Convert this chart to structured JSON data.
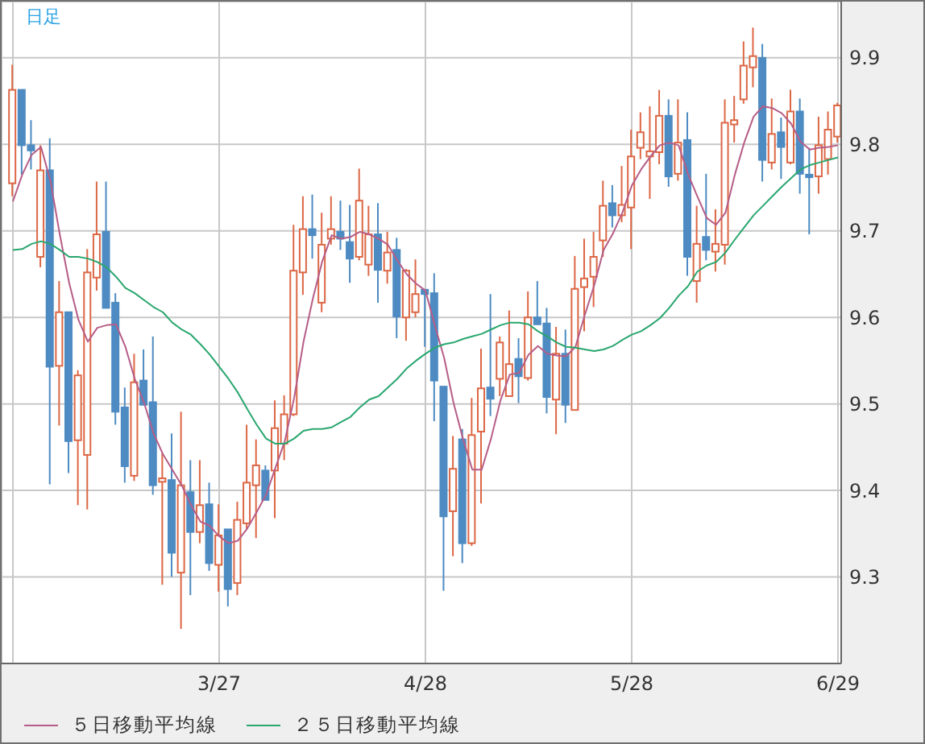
{
  "chart_data": {
    "type": "candlestick",
    "title": "日足",
    "categories": [
      null,
      null,
      null,
      null,
      null,
      null,
      null,
      null,
      null,
      null,
      null,
      null,
      null,
      null,
      null,
      null,
      null,
      null,
      null,
      null,
      null,
      null,
      "3/27",
      null,
      null,
      null,
      null,
      null,
      null,
      null,
      null,
      null,
      null,
      null,
      null,
      null,
      null,
      null,
      null,
      null,
      null,
      null,
      null,
      null,
      "4/28",
      null,
      null,
      null,
      null,
      null,
      null,
      null,
      null,
      null,
      null,
      null,
      null,
      null,
      null,
      null,
      null,
      null,
      null,
      null,
      null,
      null,
      "5/28",
      null,
      null,
      null,
      null,
      null,
      null,
      null,
      null,
      null,
      null,
      null,
      null,
      null,
      null,
      null,
      null,
      null,
      null,
      null,
      null,
      null,
      "6/29"
    ],
    "ohlc": [
      [
        9.755,
        9.892,
        9.74,
        9.863
      ],
      [
        9.863,
        9.863,
        9.765,
        9.799
      ],
      [
        9.799,
        9.828,
        9.771,
        9.793
      ],
      [
        9.67,
        9.799,
        9.658,
        9.77
      ],
      [
        9.77,
        9.807,
        9.407,
        9.543
      ],
      [
        9.544,
        9.642,
        9.475,
        9.606
      ],
      [
        9.606,
        9.606,
        9.42,
        9.457
      ],
      [
        9.458,
        9.539,
        9.383,
        9.533
      ],
      [
        9.441,
        9.679,
        9.378,
        9.652
      ],
      [
        9.646,
        9.757,
        9.631,
        9.696
      ],
      [
        9.699,
        9.757,
        9.611,
        9.611
      ],
      [
        9.617,
        9.628,
        9.476,
        9.491
      ],
      [
        9.496,
        9.519,
        9.409,
        9.428
      ],
      [
        9.417,
        9.558,
        9.411,
        9.525
      ],
      [
        9.527,
        9.563,
        9.499,
        9.499
      ],
      [
        9.502,
        9.578,
        9.395,
        9.406
      ],
      [
        9.41,
        9.443,
        9.291,
        9.414
      ],
      [
        9.412,
        9.466,
        9.3,
        9.328
      ],
      [
        9.305,
        9.491,
        9.24,
        9.406
      ],
      [
        9.398,
        9.435,
        9.279,
        9.352
      ],
      [
        9.352,
        9.435,
        9.339,
        9.383
      ],
      [
        9.384,
        9.409,
        9.307,
        9.316
      ],
      [
        9.314,
        9.384,
        9.283,
        9.348
      ],
      [
        9.355,
        9.355,
        9.266,
        9.286
      ],
      [
        9.293,
        9.387,
        9.279,
        9.366
      ],
      [
        9.362,
        9.476,
        9.355,
        9.409
      ],
      [
        9.406,
        9.459,
        9.345,
        9.429
      ],
      [
        9.423,
        9.429,
        9.389,
        9.389
      ],
      [
        9.423,
        9.504,
        9.368,
        9.472
      ],
      [
        9.454,
        9.51,
        9.435,
        9.488
      ],
      [
        9.488,
        9.707,
        9.486,
        9.654
      ],
      [
        9.652,
        9.74,
        9.626,
        9.702
      ],
      [
        9.702,
        9.742,
        9.668,
        9.695
      ],
      [
        9.617,
        9.721,
        9.606,
        9.684
      ],
      [
        9.691,
        9.74,
        9.684,
        9.702
      ],
      [
        9.699,
        9.735,
        9.678,
        9.691
      ],
      [
        9.687,
        9.73,
        9.64,
        9.668
      ],
      [
        9.67,
        9.772,
        9.666,
        9.735
      ],
      [
        9.661,
        9.729,
        9.648,
        9.696
      ],
      [
        9.696,
        9.732,
        9.617,
        9.655
      ],
      [
        9.654,
        9.699,
        9.639,
        9.675
      ],
      [
        9.678,
        9.692,
        9.576,
        9.601
      ],
      [
        9.6,
        9.656,
        9.573,
        9.654
      ],
      [
        9.606,
        9.667,
        9.6,
        9.627
      ],
      [
        9.632,
        9.632,
        9.566,
        9.627
      ],
      [
        9.628,
        9.651,
        9.48,
        9.527
      ],
      [
        9.52,
        9.52,
        9.284,
        9.37
      ],
      [
        9.376,
        9.463,
        9.324,
        9.425
      ],
      [
        9.459,
        9.471,
        9.316,
        9.339
      ],
      [
        9.339,
        9.507,
        9.336,
        9.464
      ],
      [
        9.468,
        9.564,
        9.385,
        9.518
      ],
      [
        9.519,
        9.627,
        9.486,
        9.506
      ],
      [
        9.529,
        9.578,
        9.509,
        9.571
      ],
      [
        9.509,
        9.608,
        9.509,
        9.546
      ],
      [
        9.552,
        9.576,
        9.501,
        9.532
      ],
      [
        9.53,
        9.63,
        9.527,
        9.6
      ],
      [
        9.6,
        9.642,
        9.592,
        9.592
      ],
      [
        9.593,
        9.611,
        9.489,
        9.508
      ],
      [
        9.505,
        9.589,
        9.465,
        9.558
      ],
      [
        9.558,
        9.586,
        9.478,
        9.499
      ],
      [
        9.493,
        9.671,
        9.493,
        9.633
      ],
      [
        9.635,
        9.691,
        9.584,
        9.645
      ],
      [
        9.647,
        9.699,
        9.612,
        9.67
      ],
      [
        9.689,
        9.758,
        9.67,
        9.729
      ],
      [
        9.732,
        9.753,
        9.704,
        9.718
      ],
      [
        9.718,
        9.775,
        9.71,
        9.73
      ],
      [
        9.727,
        9.817,
        9.679,
        9.786
      ],
      [
        9.796,
        9.837,
        9.783,
        9.814
      ],
      [
        9.786,
        9.844,
        9.737,
        9.792
      ],
      [
        9.791,
        9.863,
        9.777,
        9.833
      ],
      [
        9.833,
        9.852,
        9.751,
        9.763
      ],
      [
        9.766,
        9.852,
        9.758,
        9.802
      ],
      [
        9.805,
        9.837,
        9.648,
        9.67
      ],
      [
        9.642,
        9.729,
        9.617,
        9.685
      ],
      [
        9.693,
        9.766,
        9.666,
        9.678
      ],
      [
        9.676,
        9.725,
        9.653,
        9.685
      ],
      [
        9.684,
        9.852,
        9.661,
        9.825
      ],
      [
        9.823,
        9.856,
        9.802,
        9.828
      ],
      [
        9.852,
        9.919,
        9.847,
        9.891
      ],
      [
        9.889,
        9.935,
        9.866,
        9.902
      ],
      [
        9.9,
        9.916,
        9.757,
        9.782
      ],
      [
        9.779,
        9.853,
        9.771,
        9.812
      ],
      [
        9.814,
        9.831,
        9.76,
        9.797
      ],
      [
        9.779,
        9.863,
        9.777,
        9.838
      ],
      [
        9.838,
        9.853,
        9.743,
        9.766
      ],
      [
        9.765,
        9.796,
        9.696,
        9.762
      ],
      [
        9.763,
        9.832,
        9.743,
        9.799
      ],
      [
        9.783,
        9.838,
        9.765,
        9.817
      ],
      [
        9.809,
        9.848,
        9.802,
        9.845
      ]
    ],
    "colors": [
      "#dc6745",
      "#4d8bc2",
      "#4d8bc2",
      "#dc6745",
      "#4d8bc2",
      "#dc6745",
      "#4d8bc2",
      "#dc6745",
      "#dc6745",
      "#dc6745",
      "#4d8bc2",
      "#4d8bc2",
      "#4d8bc2",
      "#dc6745",
      "#4d8bc2",
      "#4d8bc2",
      "#dc6745",
      "#4d8bc2",
      "#dc6745",
      "#4d8bc2",
      "#dc6745",
      "#4d8bc2",
      "#dc6745",
      "#4d8bc2",
      "#dc6745",
      "#dc6745",
      "#dc6745",
      "#4d8bc2",
      "#dc6745",
      "#dc6745",
      "#dc6745",
      "#dc6745",
      "#4d8bc2",
      "#dc6745",
      "#dc6745",
      "#4d8bc2",
      "#4d8bc2",
      "#dc6745",
      "#dc6745",
      "#4d8bc2",
      "#dc6745",
      "#4d8bc2",
      "#dc6745",
      "#dc6745",
      "#4d8bc2",
      "#4d8bc2",
      "#4d8bc2",
      "#dc6745",
      "#4d8bc2",
      "#dc6745",
      "#dc6745",
      "#4d8bc2",
      "#dc6745",
      "#dc6745",
      "#4d8bc2",
      "#dc6745",
      "#4d8bc2",
      "#4d8bc2",
      "#dc6745",
      "#4d8bc2",
      "#dc6745",
      "#dc6745",
      "#dc6745",
      "#dc6745",
      "#4d8bc2",
      "#dc6745",
      "#dc6745",
      "#dc6745",
      "#dc6745",
      "#dc6745",
      "#4d8bc2",
      "#dc6745",
      "#4d8bc2",
      "#dc6745",
      "#4d8bc2",
      "#dc6745",
      "#dc6745",
      "#dc6745",
      "#dc6745",
      "#dc6745",
      "#4d8bc2",
      "#dc6745",
      "#4d8bc2",
      "#dc6745",
      "#4d8bc2",
      "#4d8bc2",
      "#dc6745",
      "#dc6745",
      "#dc6745"
    ],
    "series": [
      {
        "name": "５日移動平均線",
        "type": "line",
        "color": "#b65d87",
        "values": [
          9.734,
          9.765,
          9.788,
          9.797,
          9.758,
          9.696,
          9.64,
          9.597,
          9.572,
          9.588,
          9.591,
          9.592,
          9.566,
          9.529,
          9.501,
          9.466,
          9.442,
          9.424,
          9.406,
          9.383,
          9.364,
          9.359,
          9.347,
          9.339,
          9.342,
          9.356,
          9.375,
          9.395,
          9.426,
          9.457,
          9.507,
          9.572,
          9.622,
          9.665,
          9.695,
          9.691,
          9.693,
          9.699,
          9.696,
          9.691,
          9.684,
          9.666,
          9.65,
          9.639,
          9.631,
          9.591,
          9.553,
          9.501,
          9.46,
          9.424,
          9.424,
          9.46,
          9.504,
          9.534,
          9.536,
          9.557,
          9.567,
          9.558,
          9.556,
          9.555,
          9.566,
          9.603,
          9.637,
          9.678,
          9.697,
          9.721,
          9.752,
          9.771,
          9.786,
          9.799,
          9.802,
          9.799,
          9.766,
          9.74,
          9.715,
          9.707,
          9.721,
          9.765,
          9.802,
          9.832,
          9.844,
          9.842,
          9.836,
          9.824,
          9.803,
          9.794,
          9.796,
          9.797,
          9.799
        ]
      },
      {
        "name": "２５日移動平均線",
        "type": "line",
        "color": "#29a66e",
        "values": [
          9.678,
          9.679,
          9.685,
          9.688,
          9.685,
          9.678,
          9.67,
          9.67,
          9.668,
          9.664,
          9.658,
          9.647,
          9.634,
          9.628,
          9.62,
          9.612,
          9.606,
          9.594,
          9.586,
          9.58,
          9.569,
          9.557,
          9.543,
          9.529,
          9.513,
          9.494,
          9.476,
          9.46,
          9.454,
          9.454,
          9.46,
          9.469,
          9.471,
          9.471,
          9.473,
          9.479,
          9.485,
          9.496,
          9.505,
          9.509,
          9.519,
          9.529,
          9.541,
          9.55,
          9.558,
          9.565,
          9.569,
          9.571,
          9.575,
          9.578,
          9.581,
          9.586,
          9.591,
          9.594,
          9.594,
          9.592,
          9.584,
          9.578,
          9.571,
          9.566,
          9.565,
          9.563,
          9.561,
          9.563,
          9.567,
          9.574,
          9.58,
          9.584,
          9.591,
          9.599,
          9.611,
          9.625,
          9.636,
          9.653,
          9.66,
          9.664,
          9.675,
          9.69,
          9.704,
          9.718,
          9.729,
          9.74,
          9.751,
          9.761,
          9.771,
          9.776,
          9.779,
          9.782,
          9.785
        ]
      }
    ],
    "ylim": [
      9.2,
      9.965
    ],
    "yticks": [
      9.3,
      9.4,
      9.5,
      9.6,
      9.7,
      9.8,
      9.9
    ],
    "grid": true,
    "legend": "bottom left"
  }
}
